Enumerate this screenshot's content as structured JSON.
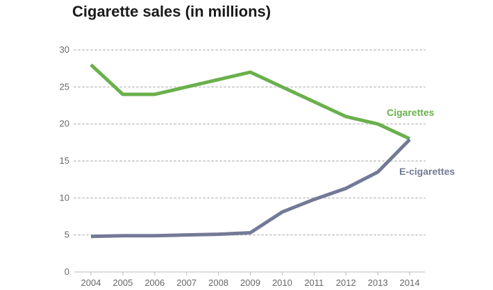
{
  "chart_data": {
    "type": "line",
    "title": "Cigarette sales (in millions)",
    "xlabel": "",
    "ylabel": "",
    "x": [
      2004,
      2005,
      2006,
      2007,
      2008,
      2009,
      2010,
      2011,
      2012,
      2013,
      2014
    ],
    "y_ticks": [
      0,
      5,
      10,
      15,
      20,
      25,
      30
    ],
    "ylim": [
      0,
      30
    ],
    "grid": "horizontal dotted",
    "series": [
      {
        "name": "Cigarettes",
        "color": "#6ab04c",
        "values": [
          28,
          24,
          24,
          25,
          26,
          27,
          25,
          23,
          21,
          20,
          18
        ]
      },
      {
        "name": "E-cigarettes",
        "color": "#737a96",
        "values": [
          4.8,
          4.9,
          4.9,
          5.0,
          5.1,
          5.3,
          8.1,
          9.8,
          11.3,
          13.5,
          17.9
        ]
      }
    ]
  }
}
